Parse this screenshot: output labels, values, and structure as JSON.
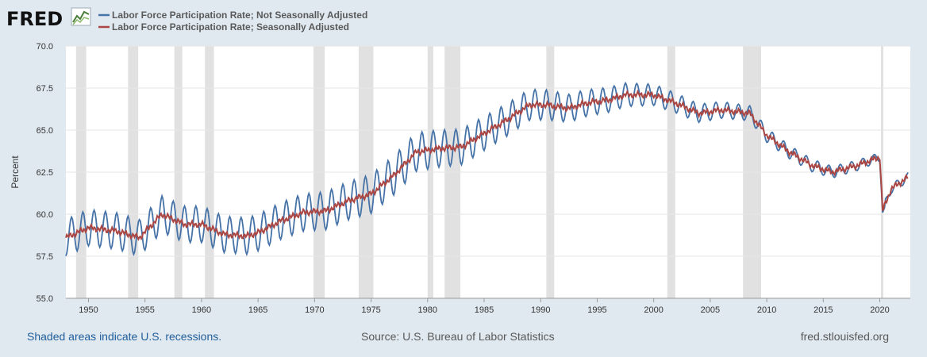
{
  "header": {
    "logo_text": "FRED"
  },
  "colors": {
    "nsa": "#4572a7",
    "sa": "#aa4643",
    "recession": "#e1e1e1",
    "background": "#e1e9f0",
    "plot_background": "#ffffff"
  },
  "footer": {
    "recession_note": "Shaded areas indicate U.S. recessions.",
    "source": "Source: U.S. Bureau of Labor Statistics",
    "site": "fred.stlouisfed.org"
  },
  "chart_data": {
    "type": "line",
    "title": "",
    "xlabel": "",
    "ylabel": "Percent",
    "xlim": [
      1948,
      2022.7
    ],
    "ylim": [
      55.0,
      70.0
    ],
    "yticks": [
      "55.0",
      "57.5",
      "60.0",
      "62.5",
      "65.0",
      "67.5",
      "70.0"
    ],
    "xticks": [
      "1950",
      "1955",
      "1960",
      "1965",
      "1970",
      "1975",
      "1980",
      "1985",
      "1990",
      "1995",
      "2000",
      "2005",
      "2010",
      "2015",
      "2020"
    ],
    "grid": true,
    "legend_position": "top-left",
    "recessions": [
      [
        1948.9,
        1949.8
      ],
      [
        1953.5,
        1954.4
      ],
      [
        1957.6,
        1958.3
      ],
      [
        1960.3,
        1961.1
      ],
      [
        1969.9,
        1970.9
      ],
      [
        1973.9,
        1975.2
      ],
      [
        1980.0,
        1980.5
      ],
      [
        1981.5,
        1982.9
      ],
      [
        1990.5,
        1991.2
      ],
      [
        2001.2,
        2001.9
      ],
      [
        2007.9,
        2009.5
      ],
      [
        2020.1,
        2020.3
      ]
    ],
    "series": [
      {
        "name": "Labor Force Participation Rate; Not Seasonally Adjusted",
        "seasonal_amplitude": [
          [
            1948,
            1.2
          ],
          [
            1965,
            1.2
          ],
          [
            1978,
            1.3
          ],
          [
            1990,
            1.0
          ],
          [
            2000,
            0.7
          ],
          [
            2008,
            0.5
          ],
          [
            2015,
            0.4
          ],
          [
            2020,
            0.3
          ],
          [
            2022.7,
            0.3
          ]
        ],
        "anchors": [
          [
            1948.0,
            57.3
          ],
          [
            1948.3,
            60.5
          ],
          [
            1956.5,
            61.2
          ],
          [
            1964.9,
            57.4
          ],
          [
            1968.5,
            60.8
          ],
          [
            1970.5,
            61.0
          ],
          [
            1974.5,
            62.7
          ],
          [
            1978.5,
            64.8
          ],
          [
            1989.5,
            67.7
          ],
          [
            1997.6,
            68.0
          ],
          [
            2000.5,
            67.8
          ],
          [
            2010.5,
            65.7
          ],
          [
            2020.33,
            60.0
          ],
          [
            2022.5,
            62.6
          ]
        ]
      },
      {
        "name": "Labor Force Participation Rate; Seasonally Adjusted",
        "anchors": [
          [
            1948.0,
            58.6
          ],
          [
            1950.0,
            59.2
          ],
          [
            1952.5,
            59.0
          ],
          [
            1954.5,
            58.6
          ],
          [
            1956.5,
            60.0
          ],
          [
            1958.5,
            59.4
          ],
          [
            1960.0,
            59.4
          ],
          [
            1962.0,
            58.8
          ],
          [
            1964.0,
            58.7
          ],
          [
            1965.0,
            58.9
          ],
          [
            1967.0,
            59.6
          ],
          [
            1969.0,
            60.1
          ],
          [
            1971.0,
            60.2
          ],
          [
            1973.0,
            60.8
          ],
          [
            1975.0,
            61.2
          ],
          [
            1977.0,
            62.3
          ],
          [
            1979.0,
            63.7
          ],
          [
            1981.0,
            63.9
          ],
          [
            1983.0,
            64.0
          ],
          [
            1985.0,
            64.8
          ],
          [
            1987.0,
            65.6
          ],
          [
            1989.0,
            66.5
          ],
          [
            1990.5,
            66.5
          ],
          [
            1992.5,
            66.3
          ],
          [
            1994.0,
            66.6
          ],
          [
            1996.0,
            66.8
          ],
          [
            1997.5,
            67.1
          ],
          [
            2000.0,
            67.1
          ],
          [
            2002.0,
            66.6
          ],
          [
            2004.0,
            66.0
          ],
          [
            2006.0,
            66.2
          ],
          [
            2008.5,
            66.0
          ],
          [
            2010.0,
            64.7
          ],
          [
            2012.0,
            63.7
          ],
          [
            2014.0,
            62.9
          ],
          [
            2015.8,
            62.5
          ],
          [
            2018.0,
            62.9
          ],
          [
            2020.0,
            63.4
          ],
          [
            2020.25,
            60.2
          ],
          [
            2021.0,
            61.5
          ],
          [
            2022.5,
            62.2
          ]
        ]
      }
    ]
  }
}
